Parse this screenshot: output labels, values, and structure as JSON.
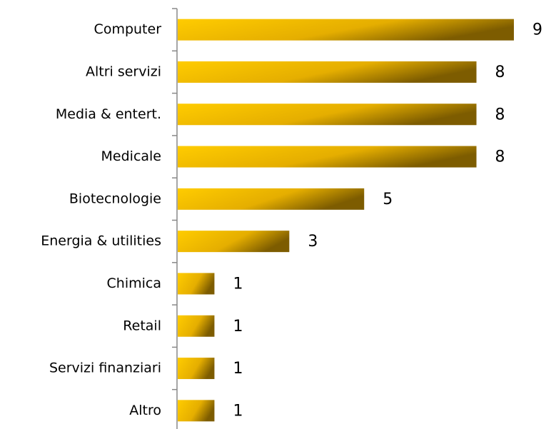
{
  "chart_data": {
    "type": "barh",
    "categories": [
      "Computer",
      "Altri servizi",
      "Media & entert.",
      "Medicale",
      "Biotecnologie",
      "Energia & utilities",
      "Chimica",
      "Retail",
      "Servizi finanziari",
      "Altro"
    ],
    "values": [
      9,
      8,
      8,
      8,
      5,
      3,
      1,
      1,
      1,
      1
    ],
    "color": "#f5c000"
  }
}
